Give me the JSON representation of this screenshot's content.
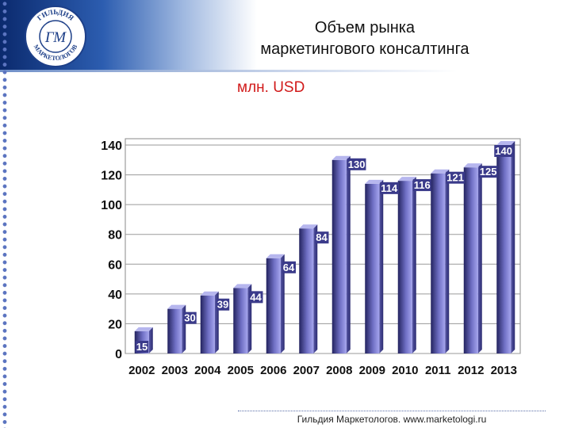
{
  "header": {
    "logo_text_top": "ГИЛЬДИЯ",
    "logo_text_bottom": "МАРКЕТОЛОГОВ",
    "logo_monogram": "ГМ",
    "title_line1": "Объем рынка",
    "title_line2": "маркетингового консалтинга"
  },
  "unit_label": "млн. USD",
  "footer": {
    "text": "Гильдия Маркетологов. www.marketologi.ru"
  },
  "colors": {
    "bar_dark": "#23235f",
    "bar_light": "#9a9ae6",
    "bar_top": "#b6b6ee",
    "unit_red": "#d11a1a",
    "header_blue": "#0b2a6e"
  },
  "chart_data": {
    "type": "bar",
    "title": "",
    "xlabel": "",
    "ylabel": "",
    "ylim": [
      0,
      140
    ],
    "yticks": [
      0,
      20,
      40,
      60,
      80,
      100,
      120,
      140
    ],
    "grid": true,
    "categories": [
      "2002",
      "2003",
      "2004",
      "2005",
      "2006",
      "2007",
      "2008",
      "2009",
      "2010",
      "2011",
      "2012",
      "2013"
    ],
    "values": [
      15,
      30,
      39,
      44,
      64,
      84,
      130,
      114,
      116,
      121,
      125,
      140
    ],
    "data_labels": [
      "15",
      "30",
      "39",
      "44",
      "64",
      "84",
      "130",
      "114",
      "116",
      "121",
      "125",
      "140"
    ]
  }
}
